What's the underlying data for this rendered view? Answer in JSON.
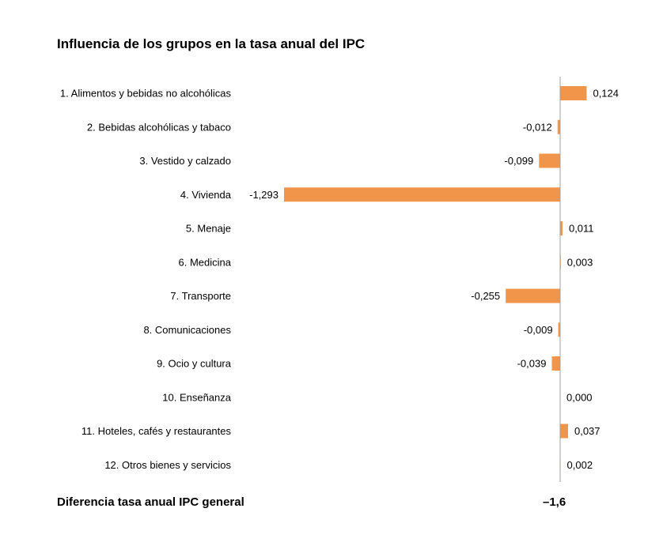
{
  "chart_data": {
    "type": "bar",
    "orientation": "horizontal",
    "title": "Influencia de los grupos en la tasa anual del IPC",
    "categories": [
      "1. Alimentos y bebidas no alcohólicas",
      "2. Bebidas alcohólicas y tabaco",
      "3. Vestido y calzado",
      "4. Vivienda",
      "5. Menaje",
      "6. Medicina",
      "7. Transporte",
      "8. Comunicaciones",
      "9. Ocio y cultura",
      "10. Enseñanza",
      "11. Hoteles, cafés y restaurantes",
      "12. Otros bienes y servicios"
    ],
    "values": [
      0.124,
      -0.012,
      -0.099,
      -1.293,
      0.011,
      0.003,
      -0.255,
      -0.009,
      -0.039,
      0.0,
      0.037,
      0.002
    ],
    "value_labels": [
      "0,124",
      "-0,012",
      "-0,099",
      "-1,293",
      "0,011",
      "0,003",
      "-0,255",
      "-0,009",
      "-0,039",
      "0,000",
      "0,037",
      "0,002"
    ],
    "bar_color": "#f0954a",
    "axis_color": "#a0a0a0",
    "grid": false,
    "legend": "none"
  },
  "footer": {
    "label": "Diferencia tasa anual IPC general",
    "value": "–1,6"
  }
}
